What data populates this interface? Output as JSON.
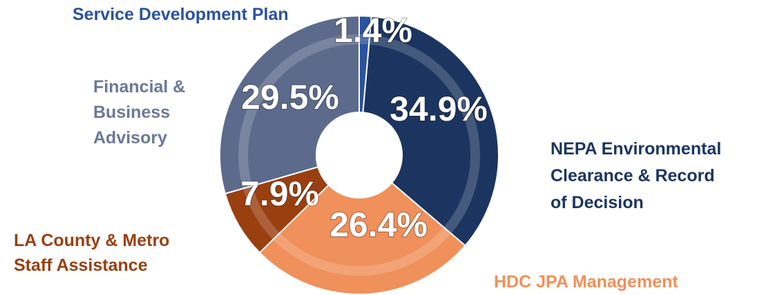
{
  "chart_data": {
    "type": "donut",
    "categories": [
      "Service Development Plan",
      "NEPA Environmental Clearance & Record of Decision",
      "HDC JPA Management",
      "LA County & Metro Staff Assistance",
      "Financial & Business Advisory"
    ],
    "values": [
      1.4,
      34.9,
      26.4,
      7.9,
      29.5
    ],
    "value_labels": [
      "1.4%",
      "34.9%",
      "26.4%",
      "7.9%",
      "29.5%"
    ],
    "colors": [
      "#2a52a0",
      "#1c3560",
      "#f0905a",
      "#9a3f10",
      "#5c6a8c"
    ]
  }
}
